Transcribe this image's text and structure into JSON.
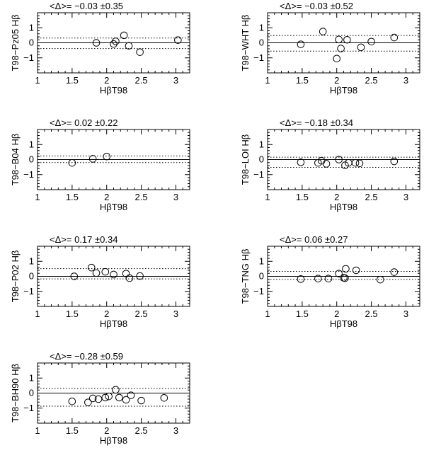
{
  "chart_data": [
    {
      "type": "scatter",
      "title": "<Δ>= −0.03 ±0.35",
      "xlabel": "HβT98",
      "ylabel": "T98−Pz05 Hβ",
      "xlim": [
        1,
        3.2
      ],
      "ylim": [
        -2,
        2
      ],
      "xticks": [
        "1",
        "1.5",
        "2",
        "2.5",
        "3"
      ],
      "yticks": [
        "−1",
        "0",
        "1"
      ],
      "mean": -0.03,
      "sigma": 0.35,
      "points": [
        [
          1.85,
          0.0
        ],
        [
          2.1,
          -0.08
        ],
        [
          2.13,
          0.1
        ],
        [
          2.25,
          0.5
        ],
        [
          2.32,
          -0.2
        ],
        [
          2.48,
          -0.62
        ],
        [
          3.03,
          0.18
        ]
      ]
    },
    {
      "type": "scatter",
      "title": "<Δ>= −0.03 ±0.52",
      "xlabel": "HβT98",
      "ylabel": "T98−WHT Hβ",
      "xlim": [
        1,
        3.2
      ],
      "ylim": [
        -2,
        2
      ],
      "xticks": [
        "1",
        "1.5",
        "2",
        "2.5",
        "3"
      ],
      "yticks": [
        "−1",
        "0",
        "1"
      ],
      "mean": -0.03,
      "sigma": 0.52,
      "points": [
        [
          1.48,
          -0.1
        ],
        [
          1.8,
          0.75
        ],
        [
          2.0,
          -1.05
        ],
        [
          2.03,
          0.22
        ],
        [
          2.06,
          -0.38
        ],
        [
          2.15,
          0.2
        ],
        [
          2.35,
          -0.3
        ],
        [
          2.5,
          0.08
        ],
        [
          2.83,
          0.35
        ]
      ]
    },
    {
      "type": "scatter",
      "title": "<Δ>= 0.02 ±0.22",
      "xlabel": "HβT98",
      "ylabel": "T98−B04 Hβ",
      "xlim": [
        1,
        3.2
      ],
      "ylim": [
        -2,
        2
      ],
      "xticks": [
        "1",
        "1.5",
        "2",
        "2.5",
        "3"
      ],
      "yticks": [
        "−1",
        "0",
        "1"
      ],
      "mean": 0.02,
      "sigma": 0.22,
      "points": [
        [
          1.5,
          -0.22
        ],
        [
          1.8,
          0.05
        ],
        [
          2.0,
          0.2
        ]
      ]
    },
    {
      "type": "scatter",
      "title": "<Δ>= −0.18 ±0.34",
      "xlabel": "HβT98",
      "ylabel": "T98−LOI Hβ",
      "xlim": [
        1,
        3.2
      ],
      "ylim": [
        -2,
        2
      ],
      "xticks": [
        "1",
        "1.5",
        "2",
        "2.5",
        "3"
      ],
      "yticks": [
        "−1",
        "0",
        "1"
      ],
      "mean": -0.18,
      "sigma": 0.34,
      "points": [
        [
          1.48,
          -0.18
        ],
        [
          1.73,
          -0.22
        ],
        [
          1.78,
          -0.08
        ],
        [
          1.85,
          -0.28
        ],
        [
          2.03,
          0.0
        ],
        [
          2.12,
          -0.38
        ],
        [
          2.17,
          -0.22
        ],
        [
          2.27,
          -0.22
        ],
        [
          2.33,
          -0.25
        ],
        [
          2.83,
          -0.12
        ]
      ]
    },
    {
      "type": "scatter",
      "title": "<Δ>= 0.17 ±0.34",
      "xlabel": "HβT98",
      "ylabel": "T98−P02 Hβ",
      "xlim": [
        1,
        3.2
      ],
      "ylim": [
        -2,
        2
      ],
      "xticks": [
        "1",
        "1.5",
        "2",
        "2.5",
        "3"
      ],
      "yticks": [
        "−1",
        "0",
        "1"
      ],
      "mean": 0.17,
      "sigma": 0.34,
      "points": [
        [
          1.53,
          0.0
        ],
        [
          1.78,
          0.58
        ],
        [
          1.85,
          0.22
        ],
        [
          1.98,
          0.3
        ],
        [
          2.1,
          0.12
        ],
        [
          2.28,
          0.18
        ],
        [
          2.33,
          -0.12
        ],
        [
          2.48,
          0.02
        ]
      ]
    },
    {
      "type": "scatter",
      "title": "<Δ>= 0.06 ±0.27",
      "xlabel": "HβT98",
      "ylabel": "T98−TNG Hβ",
      "xlim": [
        1,
        3.2
      ],
      "ylim": [
        -2,
        2
      ],
      "xticks": [
        "1",
        "1.5",
        "2",
        "2.5",
        "3"
      ],
      "yticks": [
        "−1",
        "0",
        "1"
      ],
      "mean": 0.06,
      "sigma": 0.27,
      "points": [
        [
          1.48,
          -0.18
        ],
        [
          1.73,
          -0.15
        ],
        [
          1.88,
          -0.15
        ],
        [
          2.03,
          0.18
        ],
        [
          2.1,
          -0.1
        ],
        [
          2.12,
          -0.12
        ],
        [
          2.13,
          0.5
        ],
        [
          2.28,
          0.4
        ],
        [
          2.63,
          -0.22
        ],
        [
          2.83,
          0.28
        ]
      ]
    },
    {
      "type": "scatter",
      "title": "<Δ>= −0.28 ±0.59",
      "xlabel": "HβT98",
      "ylabel": "T98−BH90 Hβ",
      "xlim": [
        1,
        3.2
      ],
      "ylim": [
        -2,
        2
      ],
      "xticks": [
        "1",
        "1.5",
        "2",
        "2.5",
        "3"
      ],
      "yticks": [
        "−1",
        "0",
        "1"
      ],
      "mean": -0.28,
      "sigma": 0.59,
      "points": [
        [
          1.5,
          -0.55
        ],
        [
          1.73,
          -0.62
        ],
        [
          1.8,
          -0.35
        ],
        [
          1.88,
          -0.4
        ],
        [
          1.98,
          -0.3
        ],
        [
          2.03,
          -0.22
        ],
        [
          2.13,
          0.22
        ],
        [
          2.18,
          -0.3
        ],
        [
          2.28,
          -0.45
        ],
        [
          2.35,
          -0.15
        ],
        [
          2.5,
          -0.5
        ],
        [
          2.83,
          -0.32
        ]
      ]
    }
  ]
}
